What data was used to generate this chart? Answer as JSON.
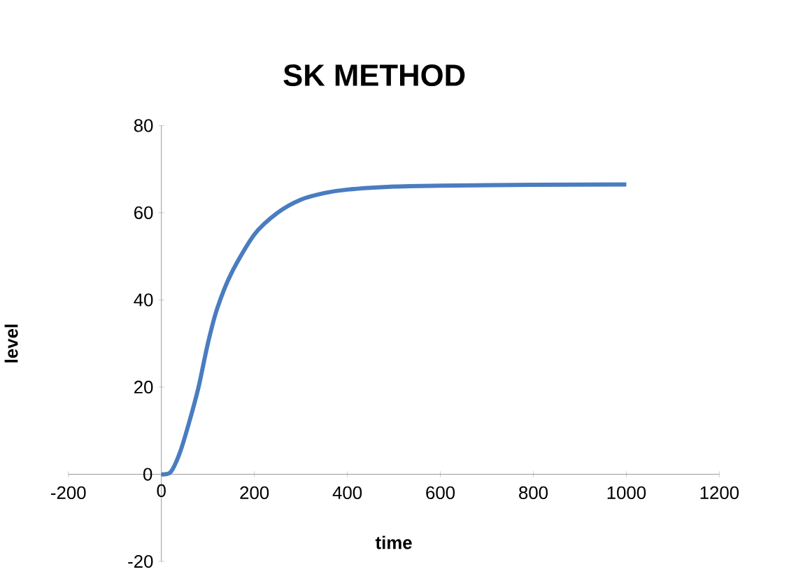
{
  "chart_data": {
    "type": "line",
    "title": "SK METHOD",
    "xlabel": "time",
    "ylabel": "level",
    "x": [
      0,
      20,
      40,
      60,
      80,
      100,
      120,
      150,
      200,
      250,
      300,
      350,
      400,
      500,
      600,
      800,
      1000
    ],
    "values": [
      0,
      0.5,
      5,
      12,
      20,
      30,
      38,
      46,
      55,
      60,
      63,
      64.5,
      65.3,
      66,
      66.2,
      66.4,
      66.5
    ],
    "color": "#4a7cc0",
    "xlim": [
      -200,
      1200
    ],
    "ylim": [
      -20,
      80
    ],
    "xticks": [
      -200,
      0,
      200,
      400,
      600,
      800,
      1000,
      1200
    ],
    "yticks": [
      -20,
      0,
      20,
      40,
      60,
      80
    ],
    "grid": false,
    "marker": "none",
    "line_style": "solid"
  }
}
